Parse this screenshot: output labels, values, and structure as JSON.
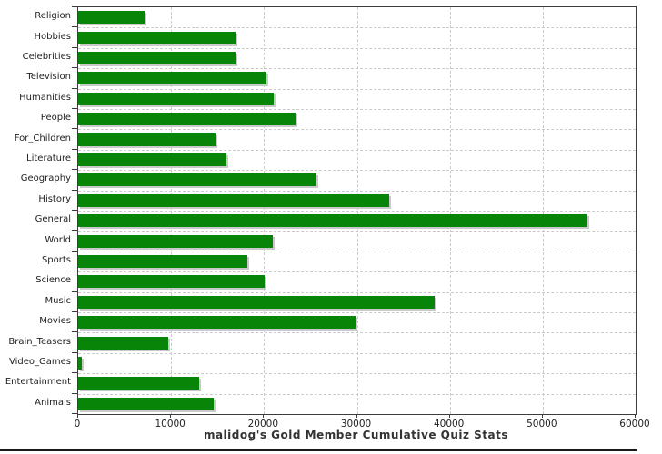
{
  "chart_data": {
    "type": "bar",
    "orientation": "horizontal",
    "title": "malidog's Gold Member Cumulative Quiz Stats",
    "categories": [
      "Religion",
      "Hobbies",
      "Celebrities",
      "Television",
      "Humanities",
      "People",
      "For_Children",
      "Literature",
      "Geography",
      "History",
      "General",
      "World",
      "Sports",
      "Science",
      "Music",
      "Movies",
      "Brain_Teasers",
      "Video_Games",
      "Entertainment",
      "Animals"
    ],
    "values": [
      7100,
      16900,
      16900,
      20300,
      21000,
      23400,
      14800,
      16000,
      25600,
      33500,
      54800,
      20900,
      18200,
      20100,
      38400,
      29900,
      9700,
      400,
      13000,
      14600
    ],
    "xlabel": "",
    "ylabel": "",
    "xlim": [
      0,
      60000
    ],
    "x_ticks": [
      0,
      10000,
      20000,
      30000,
      40000,
      50000,
      60000
    ],
    "grid": "dashed-both-axes",
    "legend": "none",
    "bar_color": "#088408",
    "shadow_color": "#c9c9c9",
    "gridline_color": "#cccccc"
  }
}
